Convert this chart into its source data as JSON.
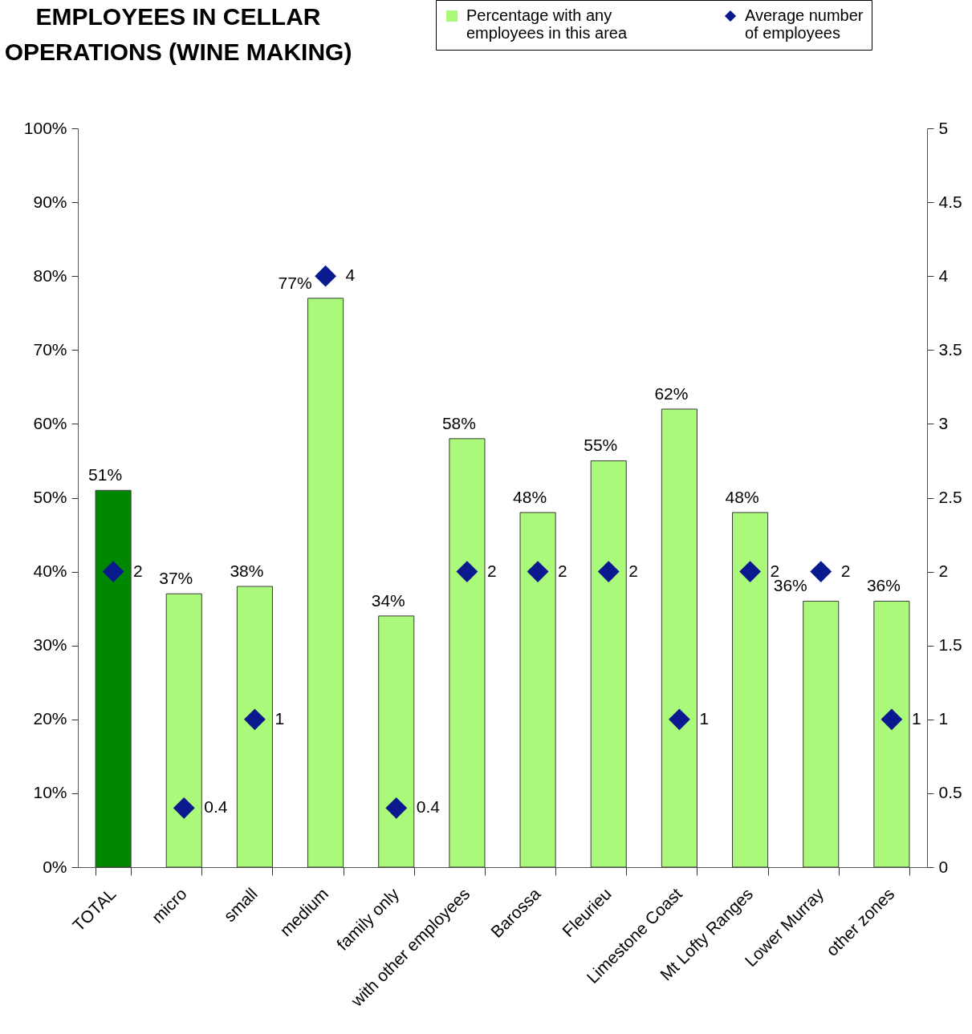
{
  "chart_data": {
    "type": "bar",
    "title": "EMPLOYEES IN CELLAR OPERATIONS (WINE MAKING)",
    "categories": [
      "TOTAL",
      "micro",
      "small",
      "medium",
      "family only",
      "with other employees",
      "Barossa",
      "Fleurieu",
      "Limestone Coast",
      "Mt Lofty Ranges",
      "Lower Murray",
      "other zones"
    ],
    "series": [
      {
        "name": "Percentage with any employees in this area",
        "color": "#aaf97a",
        "colors": [
          "#008800",
          "#aaf97a",
          "#aaf97a",
          "#aaf97a",
          "#aaf97a",
          "#aaf97a",
          "#aaf97a",
          "#aaf97a",
          "#aaf97a",
          "#aaf97a",
          "#aaf97a",
          "#aaf97a"
        ],
        "values": [
          51,
          37,
          38,
          77,
          34,
          58,
          48,
          55,
          62,
          48,
          36,
          36
        ],
        "value_labels": [
          "51%",
          "37%",
          "38%",
          "77%",
          "34%",
          "58%",
          "48%",
          "55%",
          "62%",
          "48%",
          "36%",
          "36%"
        ]
      },
      {
        "name": "Average number of employees",
        "type": "scatter",
        "axis": "y2",
        "color": "#0a1a8e",
        "values": [
          2,
          0.4,
          1,
          4,
          0.4,
          2,
          2,
          2,
          1,
          2,
          2,
          1
        ],
        "value_labels": [
          "2",
          "0.4",
          "1",
          "4",
          "0.4",
          "2",
          "2",
          "2",
          "1",
          "2",
          "2",
          "1"
        ]
      }
    ],
    "ylim": [
      0,
      100
    ],
    "yticks": [
      {
        "value": 0,
        "label": "0%"
      },
      {
        "value": 10,
        "label": "10%"
      },
      {
        "value": 20,
        "label": "20%"
      },
      {
        "value": 30,
        "label": "30%"
      },
      {
        "value": 40,
        "label": "40%"
      },
      {
        "value": 50,
        "label": "50%"
      },
      {
        "value": 60,
        "label": "60%"
      },
      {
        "value": 70,
        "label": "70%"
      },
      {
        "value": 80,
        "label": "80%"
      },
      {
        "value": 90,
        "label": "90%"
      },
      {
        "value": 100,
        "label": "100%"
      }
    ],
    "y2lim": [
      0,
      5
    ],
    "y2ticks": [
      0,
      0.5,
      1,
      1.5,
      2,
      2.5,
      3,
      3.5,
      4,
      4.5,
      5
    ],
    "marker": "diamond",
    "legend": "top right"
  }
}
